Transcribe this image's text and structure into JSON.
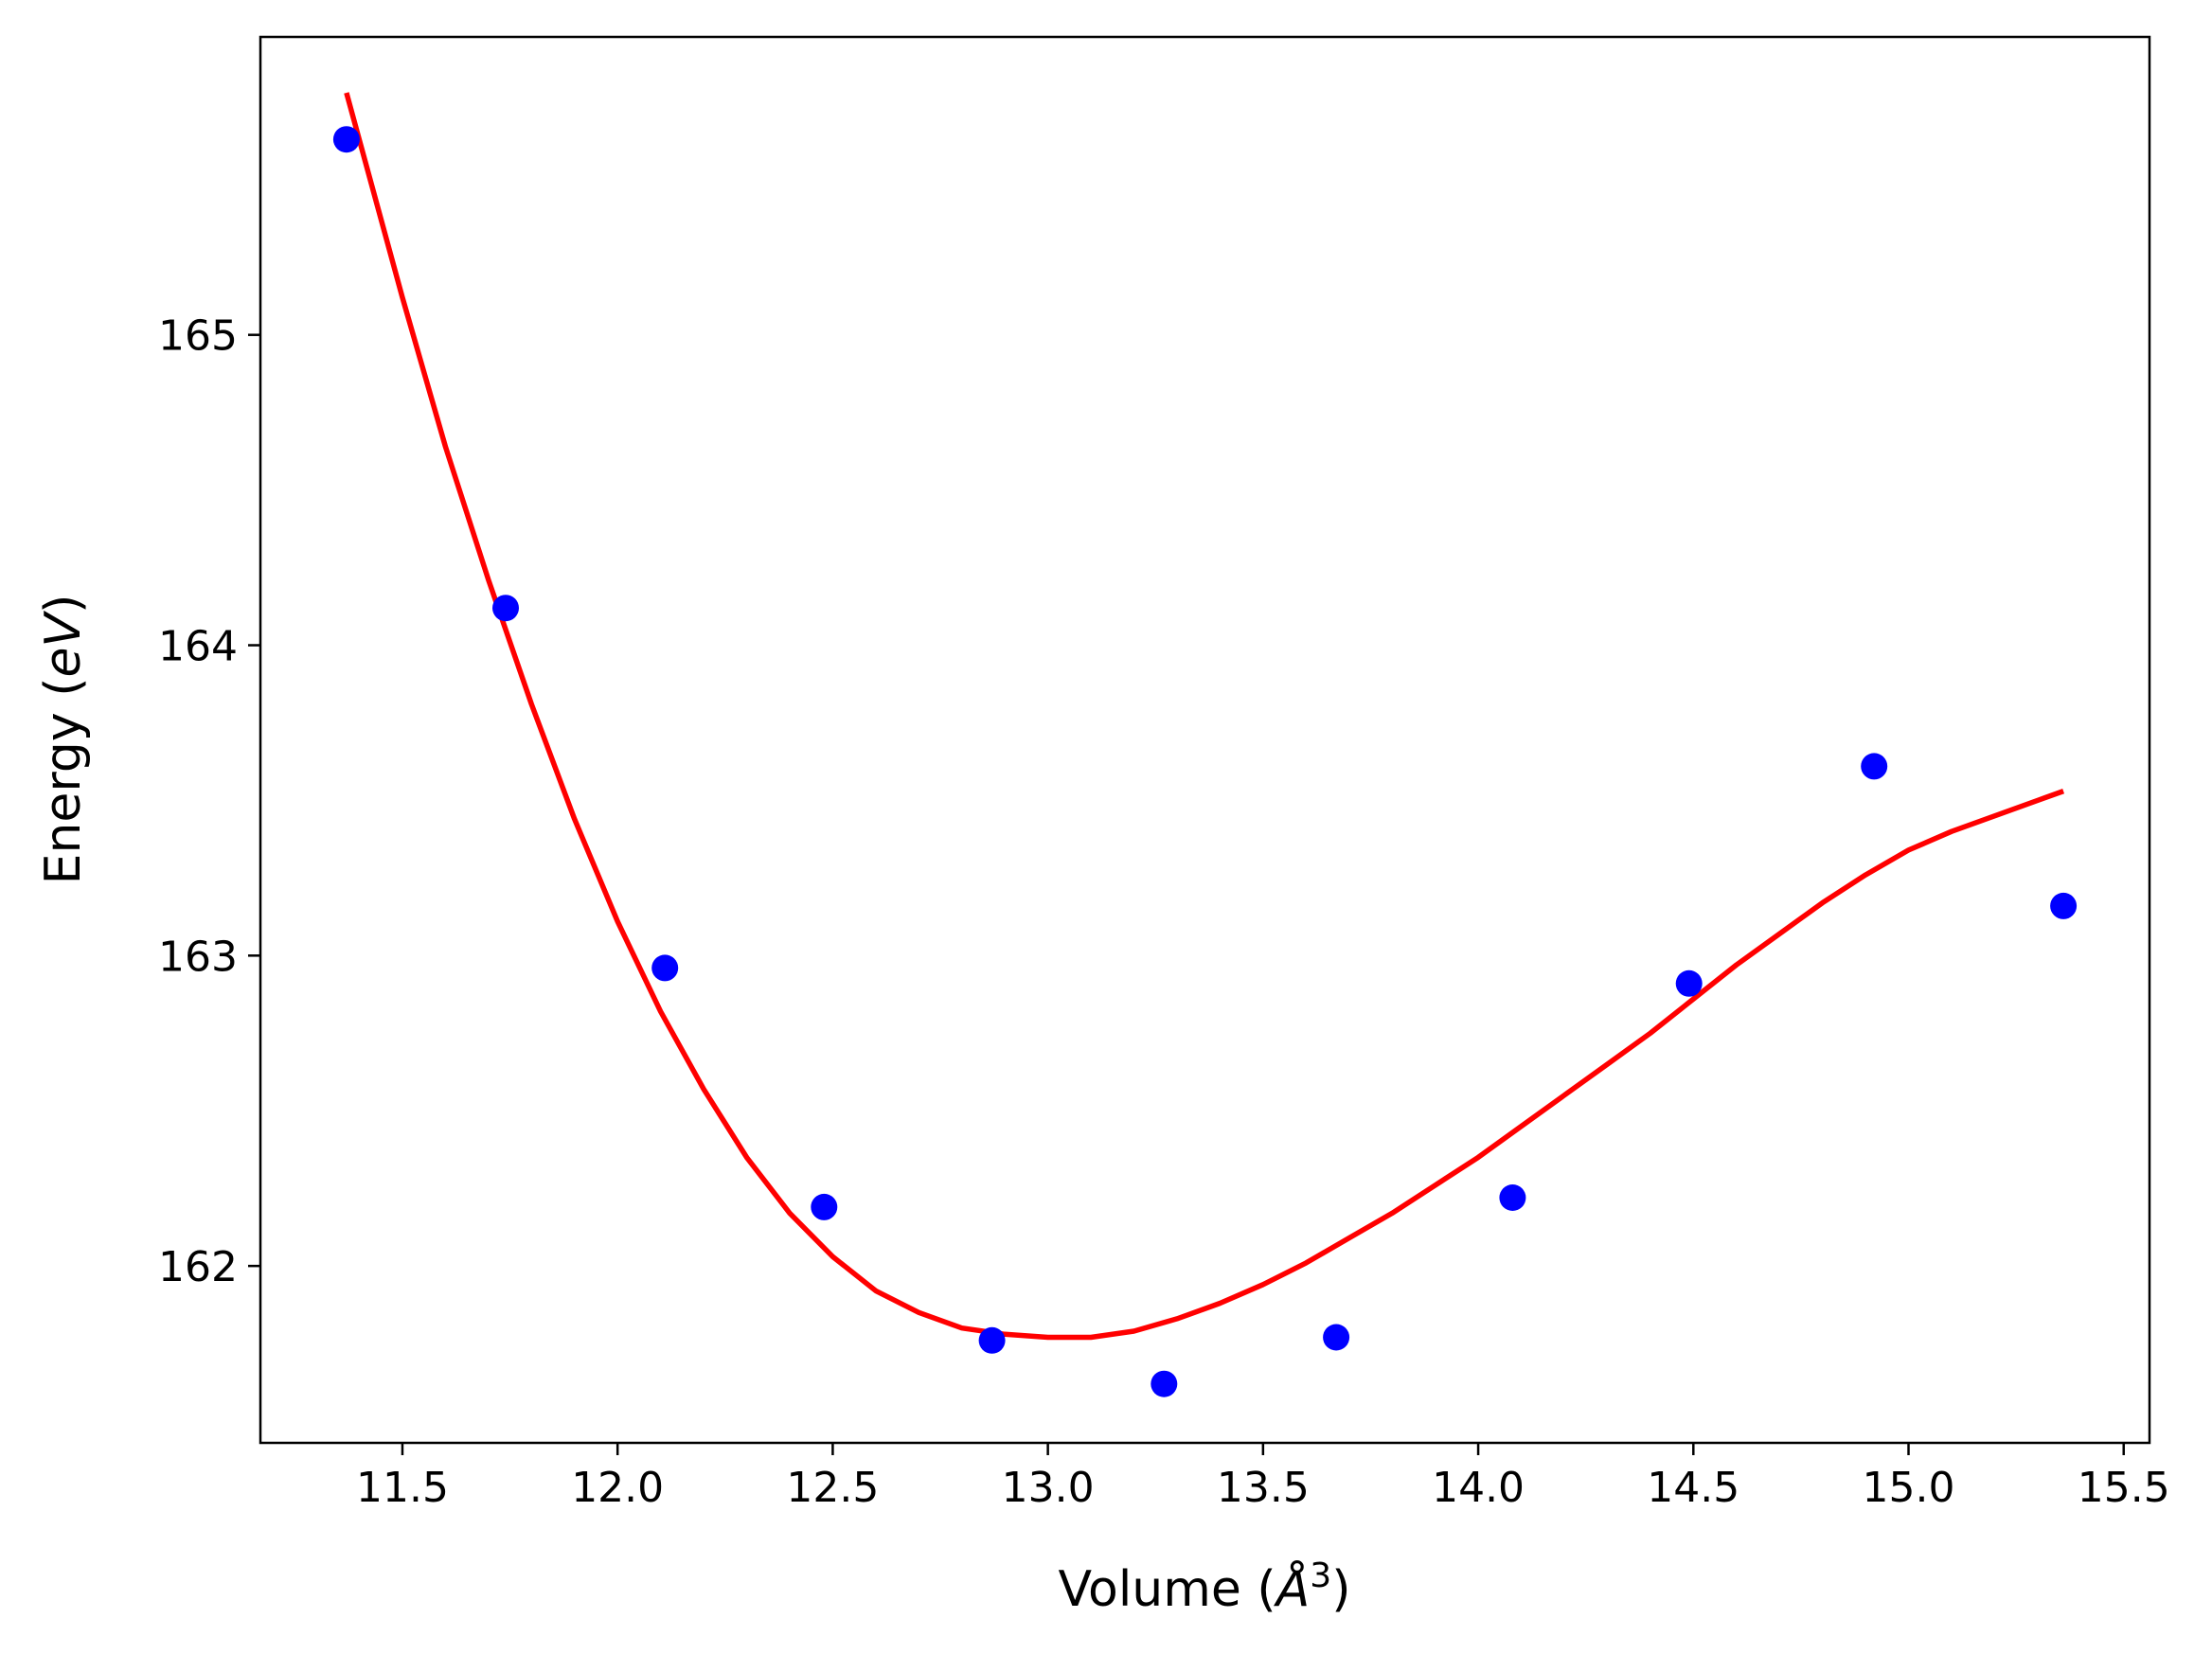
{
  "chart_data": {
    "type": "scatter",
    "title": "",
    "xlabel": {
      "prefix": "Volume (",
      "italic": "Å",
      "sup": "3",
      "suffix": ")"
    },
    "ylabel": {
      "prefix": "Energy (",
      "italic": "eV",
      "suffix": ")"
    },
    "xlim": [
      11.17,
      15.56
    ],
    "ylim": [
      161.43,
      165.96
    ],
    "xticks": [
      11.5,
      12.0,
      12.5,
      13.0,
      13.5,
      14.0,
      14.5,
      15.0,
      15.5
    ],
    "xtick_labels": [
      "11.5",
      "12.0",
      "12.5",
      "13.0",
      "13.5",
      "14.0",
      "14.5",
      "15.0",
      "15.5"
    ],
    "yticks": [
      162,
      163,
      164,
      165
    ],
    "ytick_labels": [
      "162",
      "163",
      "164",
      "165"
    ],
    "grid": false,
    "legend": "none",
    "series": [
      {
        "kind": "scatter",
        "color": "#0000ff",
        "x": [
          11.37,
          11.74,
          12.11,
          12.48,
          12.87,
          13.27,
          13.67,
          14.08,
          14.49,
          14.92,
          15.36
        ],
        "y": [
          165.63,
          164.12,
          162.96,
          162.19,
          161.76,
          161.62,
          161.77,
          162.22,
          162.91,
          163.61,
          163.16
        ]
      },
      {
        "kind": "line",
        "color": "#ff0000",
        "x": [
          11.37,
          11.5,
          11.6,
          11.7,
          11.8,
          11.9,
          12.0,
          12.1,
          12.2,
          12.3,
          12.4,
          12.5,
          12.6,
          12.7,
          12.8,
          12.9,
          13.0,
          13.1,
          13.2,
          13.3,
          13.4,
          13.5,
          13.6,
          13.7,
          13.8,
          13.9,
          14.0,
          14.1,
          14.2,
          14.3,
          14.4,
          14.5,
          14.6,
          14.7,
          14.8,
          14.9,
          15.0,
          15.1,
          15.2,
          15.3,
          15.36
        ],
        "y": [
          165.78,
          165.12,
          164.64,
          164.21,
          163.81,
          163.44,
          163.11,
          162.82,
          162.57,
          162.35,
          162.17,
          162.03,
          161.92,
          161.85,
          161.8,
          161.78,
          161.77,
          161.77,
          161.79,
          161.83,
          161.88,
          161.94,
          162.01,
          162.09,
          162.17,
          162.26,
          162.35,
          162.45,
          162.55,
          162.65,
          162.75,
          162.86,
          162.97,
          163.07,
          163.17,
          163.26,
          163.34,
          163.4,
          163.45,
          163.5,
          163.53
        ]
      }
    ]
  }
}
